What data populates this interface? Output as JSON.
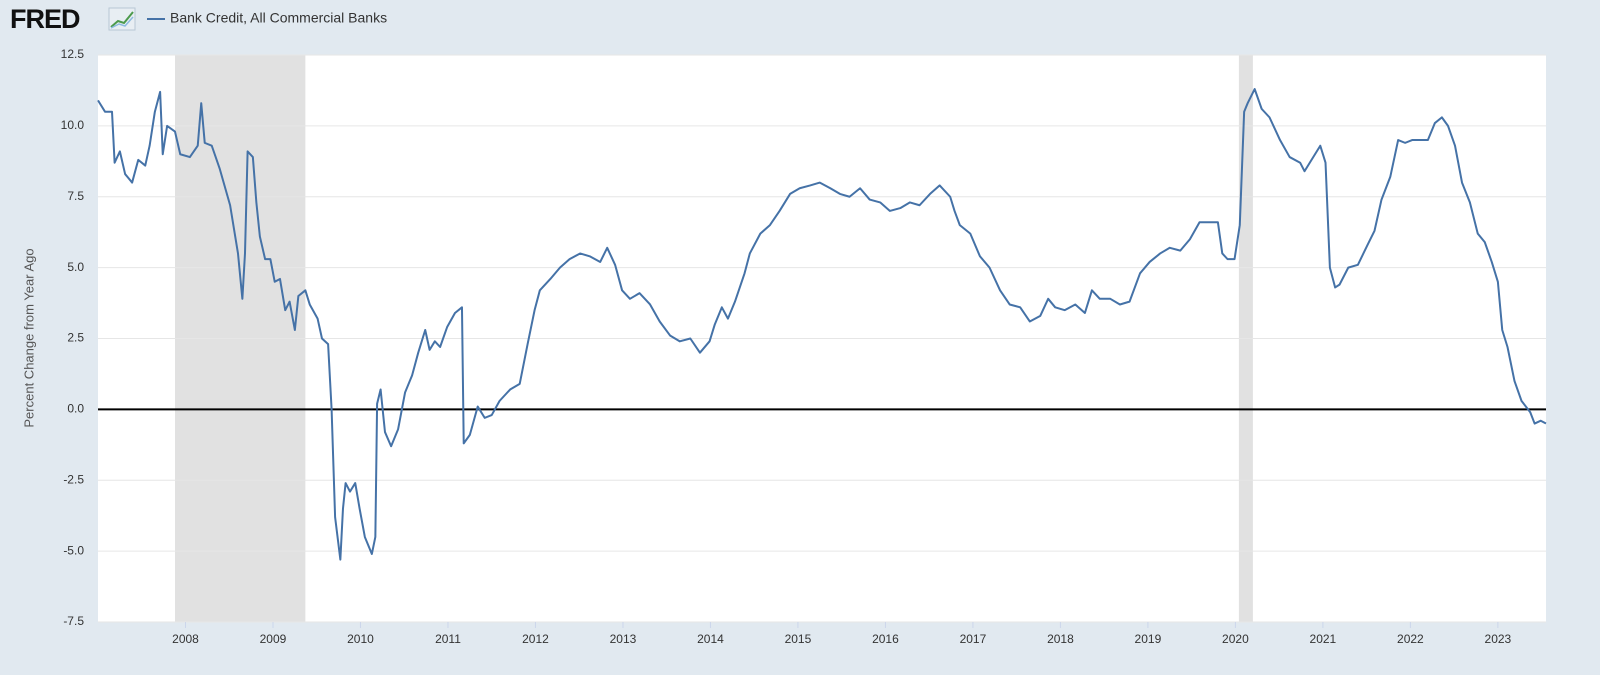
{
  "chart_data": {
    "type": "line",
    "source": "FRED",
    "y_label": "Percent Change from Year Ago",
    "x": [
      2007.0,
      2007.08,
      2007.16,
      2007.19,
      2007.25,
      2007.31,
      2007.39,
      2007.46,
      2007.54,
      2007.59,
      2007.65,
      2007.71,
      2007.74,
      2007.79,
      2007.88,
      2007.94,
      2008.05,
      2008.14,
      2008.18,
      2008.22,
      2008.3,
      2008.39,
      2008.51,
      2008.6,
      2008.65,
      2008.68,
      2008.71,
      2008.77,
      2008.81,
      2008.85,
      2008.91,
      2008.97,
      2009.02,
      2009.08,
      2009.14,
      2009.19,
      2009.25,
      2009.29,
      2009.37,
      2009.42,
      2009.51,
      2009.56,
      2009.63,
      2009.67,
      2009.71,
      2009.77,
      2009.8,
      2009.83,
      2009.88,
      2009.94,
      2009.99,
      2010.05,
      2010.13,
      2010.17,
      2010.19,
      2010.23,
      2010.28,
      2010.35,
      2010.43,
      2010.51,
      2010.59,
      2010.66,
      2010.74,
      2010.79,
      2010.85,
      2010.91,
      2010.99,
      2011.08,
      2011.16,
      2011.18,
      2011.25,
      2011.34,
      2011.42,
      2011.5,
      2011.59,
      2011.71,
      2011.82,
      2011.91,
      2011.99,
      2012.05,
      2012.17,
      2012.28,
      2012.39,
      2012.51,
      2012.62,
      2012.74,
      2012.82,
      2012.91,
      2012.99,
      2013.08,
      2013.19,
      2013.31,
      2013.42,
      2013.54,
      2013.65,
      2013.77,
      2013.88,
      2013.99,
      2014.05,
      2014.13,
      2014.2,
      2014.28,
      2014.39,
      2014.45,
      2014.57,
      2014.68,
      2014.79,
      2014.91,
      2015.02,
      2015.14,
      2015.25,
      2015.37,
      2015.48,
      2015.59,
      2015.71,
      2015.82,
      2015.94,
      2016.05,
      2016.17,
      2016.28,
      2016.39,
      2016.51,
      2016.62,
      2016.74,
      2016.79,
      2016.85,
      2016.97,
      2017.08,
      2017.19,
      2017.31,
      2017.42,
      2017.54,
      2017.65,
      2017.77,
      2017.86,
      2017.94,
      2018.05,
      2018.17,
      2018.28,
      2018.36,
      2018.45,
      2018.57,
      2018.68,
      2018.79,
      2018.91,
      2019.02,
      2019.14,
      2019.25,
      2019.37,
      2019.48,
      2019.59,
      2019.71,
      2019.8,
      2019.85,
      2019.91,
      2019.99,
      2020.05,
      2020.1,
      2020.14,
      2020.22,
      2020.3,
      2020.39,
      2020.51,
      2020.62,
      2020.74,
      2020.79,
      2020.87,
      2020.97,
      2021.03,
      2021.08,
      2021.14,
      2021.19,
      2021.29,
      2021.4,
      2021.51,
      2021.59,
      2021.67,
      2021.77,
      2021.86,
      2021.94,
      2022.02,
      2022.11,
      2022.2,
      2022.28,
      2022.36,
      2022.43,
      2022.51,
      2022.59,
      2022.68,
      2022.77,
      2022.85,
      2022.93,
      2023.0,
      2023.05,
      2023.11,
      2023.19,
      2023.27,
      2023.37,
      2023.42,
      2023.49,
      2023.55
    ],
    "series": [
      {
        "name": "Bank Credit, All Commercial Banks",
        "color": "#4572a7",
        "values": [
          10.9,
          10.5,
          10.5,
          8.7,
          9.1,
          8.3,
          8.0,
          8.8,
          8.6,
          9.3,
          10.5,
          11.2,
          9.0,
          10.0,
          9.8,
          9.0,
          8.9,
          9.3,
          10.8,
          9.4,
          9.3,
          8.5,
          7.2,
          5.5,
          3.9,
          5.5,
          9.1,
          8.9,
          7.3,
          6.1,
          5.3,
          5.3,
          4.5,
          4.6,
          3.5,
          3.8,
          2.8,
          4.0,
          4.2,
          3.7,
          3.2,
          2.5,
          2.3,
          0.0,
          -3.8,
          -5.3,
          -3.5,
          -2.6,
          -2.9,
          -2.6,
          -3.5,
          -4.5,
          -5.1,
          -4.5,
          0.2,
          0.7,
          -0.8,
          -1.3,
          -0.7,
          0.6,
          1.2,
          2.0,
          2.8,
          2.1,
          2.4,
          2.2,
          2.9,
          3.4,
          3.6,
          -1.2,
          -0.9,
          0.1,
          -0.3,
          -0.2,
          0.3,
          0.7,
          0.9,
          2.3,
          3.5,
          4.2,
          4.6,
          5.0,
          5.3,
          5.5,
          5.4,
          5.2,
          5.7,
          5.1,
          4.2,
          3.9,
          4.1,
          3.7,
          3.1,
          2.6,
          2.4,
          2.5,
          2.0,
          2.4,
          3.0,
          3.6,
          3.2,
          3.8,
          4.8,
          5.5,
          6.2,
          6.5,
          7.0,
          7.6,
          7.8,
          7.9,
          8.0,
          7.8,
          7.6,
          7.5,
          7.8,
          7.4,
          7.3,
          7.0,
          7.1,
          7.3,
          7.2,
          7.6,
          7.9,
          7.5,
          7.0,
          6.5,
          6.2,
          5.4,
          5.0,
          4.2,
          3.7,
          3.6,
          3.1,
          3.3,
          3.9,
          3.6,
          3.5,
          3.7,
          3.4,
          4.2,
          3.9,
          3.9,
          3.7,
          3.8,
          4.8,
          5.2,
          5.5,
          5.7,
          5.6,
          6.0,
          6.6,
          6.6,
          6.6,
          5.5,
          5.3,
          5.3,
          6.5,
          10.5,
          10.8,
          11.3,
          10.6,
          10.3,
          9.5,
          8.9,
          8.7,
          8.4,
          8.8,
          9.3,
          8.7,
          5.0,
          4.3,
          4.4,
          5.0,
          5.1,
          5.8,
          6.3,
          7.4,
          8.2,
          9.5,
          9.4,
          9.5,
          9.5,
          9.5,
          10.1,
          10.3,
          10.0,
          9.3,
          8.0,
          7.3,
          6.2,
          5.9,
          5.2,
          4.5,
          2.8,
          2.2,
          1.0,
          0.3,
          -0.1,
          -0.5,
          -0.4,
          -0.5
        ]
      }
    ],
    "recessions": [
      [
        2007.88,
        2009.37
      ],
      [
        2020.04,
        2020.2
      ]
    ],
    "xlim": [
      2007.0,
      2023.55
    ],
    "xticks": [
      2008,
      2009,
      2010,
      2011,
      2012,
      2013,
      2014,
      2015,
      2016,
      2017,
      2018,
      2019,
      2020,
      2021,
      2022,
      2023
    ],
    "ylim": [
      -7.5,
      12.5
    ],
    "yticks": [
      -7.5,
      {
        "value": -5,
        "label": "-5.0"
      },
      -2.5,
      {
        "value": 0,
        "label": "0.0"
      },
      2.5,
      {
        "value": 5,
        "label": "5.0"
      },
      7.5,
      {
        "value": 10,
        "label": "10.0"
      },
      12.5
    ],
    "grid": true
  }
}
